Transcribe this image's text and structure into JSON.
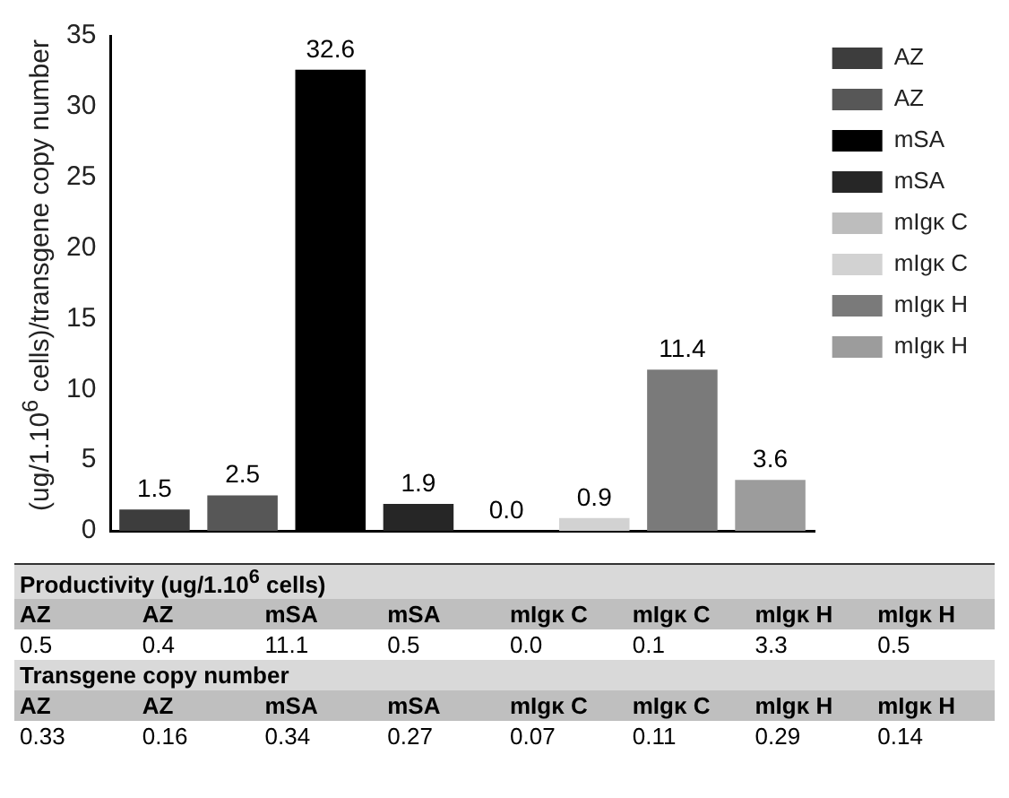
{
  "chart_data": [
    {
      "type": "bar",
      "ylabel": "(ug/1.10$^{6}$ cells)/transgene copy number",
      "categories": [
        null,
        null,
        null,
        null,
        null,
        null,
        null,
        null
      ],
      "ylim": [
        0,
        35
      ],
      "yticks": [
        0,
        5,
        10,
        15,
        20,
        25,
        30,
        35
      ],
      "grid": false,
      "legend": "top right",
      "tick_labels": "y",
      "series": [
        {
          "name": "AZ",
          "color": "#3d3d3d",
          "values": [
            1.5,
            null,
            null,
            null,
            null,
            null,
            null,
            null
          ],
          "value_labels": [
            "1.5",
            null,
            null,
            null,
            null,
            null,
            null,
            null
          ]
        },
        {
          "name": "AZ",
          "color": "#575757",
          "values": [
            null,
            2.5,
            null,
            null,
            null,
            null,
            null,
            null
          ],
          "value_labels": [
            null,
            "2.5",
            null,
            null,
            null,
            null,
            null,
            null
          ]
        },
        {
          "name": "mSA",
          "color": "#000000",
          "values": [
            null,
            null,
            32.6,
            null,
            null,
            null,
            null,
            null
          ],
          "value_labels": [
            null,
            null,
            "32.6",
            null,
            null,
            null,
            null,
            null
          ]
        },
        {
          "name": "mSA",
          "color": "#262626",
          "values": [
            null,
            null,
            null,
            1.9,
            null,
            null,
            null,
            null
          ],
          "value_labels": [
            null,
            null,
            null,
            "1.9",
            null,
            null,
            null,
            null
          ]
        },
        {
          "name": "mIgκ C",
          "color": "#bdbdbd",
          "values": [
            null,
            null,
            null,
            null,
            0.0,
            null,
            null,
            null
          ],
          "value_labels": [
            null,
            null,
            null,
            null,
            "0.0",
            null,
            null,
            null
          ]
        },
        {
          "name": "mIgκ C",
          "color": "#d2d2d2",
          "values": [
            null,
            null,
            null,
            null,
            null,
            0.9,
            null,
            null
          ],
          "value_labels": [
            null,
            null,
            null,
            null,
            null,
            "0.9",
            null,
            null
          ]
        },
        {
          "name": "mIgκ H",
          "color": "#7a7a7a",
          "values": [
            null,
            null,
            null,
            null,
            null,
            null,
            11.4,
            null
          ],
          "value_labels": [
            null,
            null,
            null,
            null,
            null,
            null,
            "11.4",
            null
          ]
        },
        {
          "name": "mIgκ H",
          "color": "#9c9c9c",
          "values": [
            null,
            null,
            null,
            null,
            null,
            null,
            null,
            3.6
          ],
          "value_labels": [
            null,
            null,
            null,
            null,
            null,
            null,
            null,
            "3.6"
          ]
        }
      ]
    },
    {
      "type": "other",
      "categories": [
        "AZ",
        "AZ",
        "mSA",
        "mSA",
        "mIgκ C",
        "mIgκ C",
        "mIgκ H",
        "mIgκ H"
      ],
      "series": [
        {
          "name": "Productivity (ug/1.10$^{6}$ cells)",
          "values": [
            0.5,
            0.4,
            11.1,
            0.5,
            0.0,
            0.1,
            3.3,
            0.5
          ],
          "value_labels": [
            "0.5",
            "0.4",
            "11.1",
            "0.5",
            "0.0",
            "0.1",
            "3.3",
            "0.5"
          ]
        },
        {
          "name": "Transgene copy number",
          "values": [
            0.33,
            0.16,
            0.34,
            0.27,
            0.07,
            0.11,
            0.29,
            0.14
          ],
          "value_labels": [
            "0.33",
            "0.16",
            "0.34",
            "0.27",
            "0.07",
            "0.11",
            "0.29",
            "0.14"
          ]
        }
      ]
    }
  ]
}
